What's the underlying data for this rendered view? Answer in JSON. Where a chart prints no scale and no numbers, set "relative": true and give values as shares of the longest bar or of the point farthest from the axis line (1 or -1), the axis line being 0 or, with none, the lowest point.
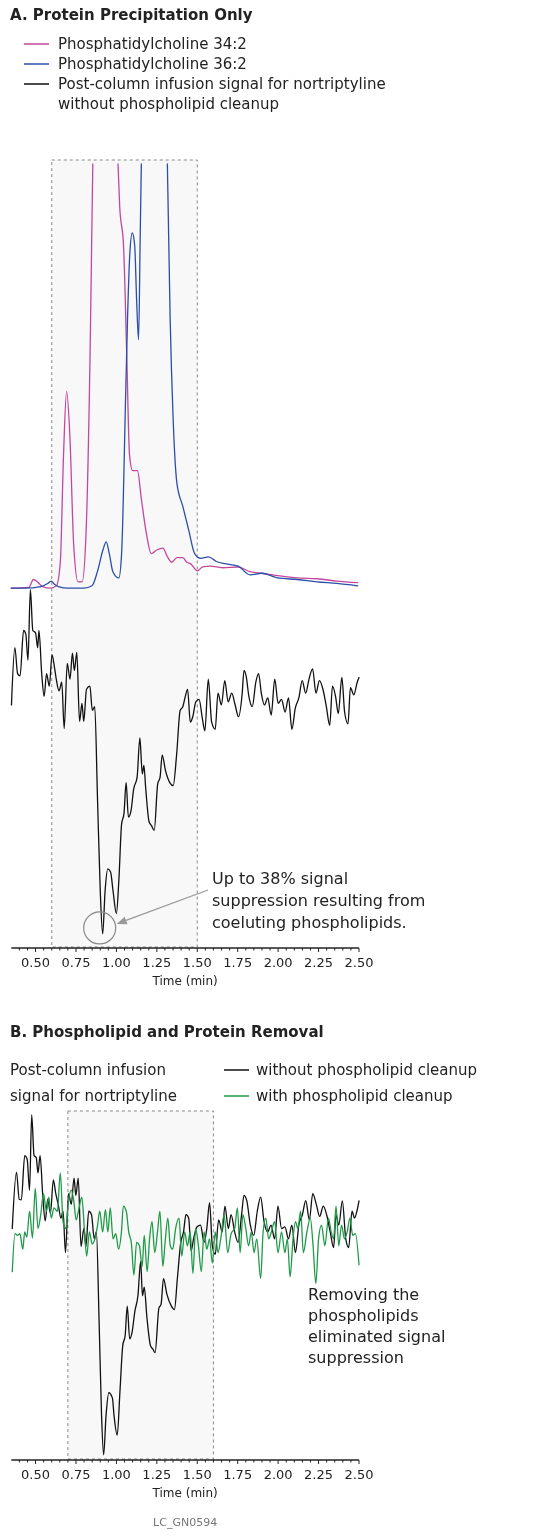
{
  "chart_data": [
    {
      "type": "line",
      "title": "A. Protein Precipitation Only",
      "xlabel": "Time (min)",
      "relative": true,
      "legend": "top",
      "xlim": [
        0.35,
        2.5
      ],
      "xticks": [
        {
          "value": 0.4,
          "label": null
        },
        {
          "value": 0.45,
          "label": null
        },
        {
          "value": 0.5,
          "label": "0.50"
        },
        {
          "value": 0.55,
          "label": null
        },
        {
          "value": 0.6,
          "label": null
        },
        {
          "value": 0.65,
          "label": null
        },
        {
          "value": 0.7,
          "label": null
        },
        {
          "value": 0.75,
          "label": "0.75"
        },
        {
          "value": 0.8,
          "label": null
        },
        {
          "value": 0.85,
          "label": null
        },
        {
          "value": 0.9,
          "label": null
        },
        {
          "value": 0.95,
          "label": null
        },
        {
          "value": 1.0,
          "label": "1.00"
        },
        {
          "value": 1.05,
          "label": null
        },
        {
          "value": 1.1,
          "label": null
        },
        {
          "value": 1.15,
          "label": null
        },
        {
          "value": 1.2,
          "label": null
        },
        {
          "value": 1.25,
          "label": "1.25"
        },
        {
          "value": 1.3,
          "label": null
        },
        {
          "value": 1.35,
          "label": null
        },
        {
          "value": 1.4,
          "label": null
        },
        {
          "value": 1.45,
          "label": null
        },
        {
          "value": 1.5,
          "label": "1.50"
        },
        {
          "value": 1.55,
          "label": null
        },
        {
          "value": 1.6,
          "label": null
        },
        {
          "value": 1.65,
          "label": null
        },
        {
          "value": 1.7,
          "label": null
        },
        {
          "value": 1.75,
          "label": "1.75"
        },
        {
          "value": 1.8,
          "label": null
        },
        {
          "value": 1.85,
          "label": null
        },
        {
          "value": 1.9,
          "label": null
        },
        {
          "value": 1.95,
          "label": null
        },
        {
          "value": 2.0,
          "label": "2.00"
        },
        {
          "value": 2.05,
          "label": null
        },
        {
          "value": 2.1,
          "label": null
        },
        {
          "value": 2.15,
          "label": null
        },
        {
          "value": 2.2,
          "label": null
        },
        {
          "value": 2.25,
          "label": "2.25"
        },
        {
          "value": 2.3,
          "label": null
        },
        {
          "value": 2.35,
          "label": null
        },
        {
          "value": 2.4,
          "label": null
        },
        {
          "value": 2.45,
          "label": null
        },
        {
          "value": 2.5,
          "label": "2.50"
        }
      ],
      "bands": [
        {
          "axis": "x",
          "from": 0.6,
          "to": 1.5,
          "color": "#888888"
        }
      ],
      "annotations": [
        "Up to 38% signal suppression resulting from coeluting phospholipids."
      ],
      "series": [
        {
          "name": "Phosphatidylcholine 34:2",
          "color": "#c2479f",
          "x": [
            0.35,
            0.458,
            0.487,
            0.512,
            0.543,
            0.592,
            0.629,
            0.653,
            0.673,
            0.692,
            0.712,
            0.736,
            0.763,
            0.788,
            0.812,
            0.837,
            0.854,
            0.932,
            1.01,
            1.02,
            1.044,
            1.064,
            1.081,
            1.1,
            1.13,
            1.154,
            1.186,
            1.215,
            1.252,
            1.288,
            1.313,
            1.342,
            1.374,
            1.411,
            1.435,
            1.459,
            1.501,
            1.533,
            1.582,
            1.655,
            1.753,
            1.826,
            1.899,
            1.997,
            2.119,
            2.241,
            2.363,
            2.492
          ],
          "values": [
            0.459,
            0.46,
            0.47,
            0.467,
            0.461,
            0.459,
            0.462,
            0.492,
            0.629,
            0.71,
            0.654,
            0.513,
            0.467,
            0.467,
            0.528,
            0.755,
            1.0,
            null,
            1.0,
            0.947,
            0.896,
            0.755,
            0.629,
            0.609,
            0.609,
            0.573,
            0.528,
            0.503,
            0.508,
            0.51,
            0.5,
            0.492,
            0.498,
            0.498,
            0.492,
            0.49,
            0.481,
            0.486,
            0.487,
            0.485,
            0.486,
            0.48,
            0.478,
            0.475,
            0.472,
            0.471,
            0.468,
            0.466
          ]
        },
        {
          "name": "Phosphatidylcholine 36:2",
          "color": "#2a4fa8",
          "x": [
            0.35,
            0.434,
            0.531,
            0.575,
            0.597,
            0.617,
            0.641,
            0.702,
            0.8,
            0.849,
            0.885,
            0.917,
            0.937,
            0.956,
            0.978,
            1.015,
            1.032,
            1.057,
            1.069,
            1.083,
            1.098,
            1.113,
            1.125,
            1.137,
            1.147,
            1.154,
            1.235,
            1.315,
            1.332,
            1.35,
            1.374,
            1.411,
            1.447,
            1.484,
            1.52,
            1.569,
            1.618,
            1.679,
            1.753,
            1.826,
            1.899,
            1.997,
            2.119,
            2.241,
            2.363,
            2.492
          ],
          "values": [
            0.459,
            0.459,
            0.461,
            0.465,
            0.468,
            0.464,
            0.461,
            0.459,
            0.459,
            0.462,
            0.482,
            0.508,
            0.518,
            0.503,
            0.48,
            0.472,
            0.503,
            0.704,
            0.805,
            0.886,
            0.912,
            0.896,
            0.826,
            0.776,
            0.906,
            1.0,
            null,
            1.0,
            0.805,
            0.679,
            0.593,
            0.563,
            0.533,
            0.503,
            0.497,
            0.499,
            0.493,
            0.49,
            0.487,
            0.476,
            0.478,
            0.472,
            0.47,
            0.467,
            0.465,
            0.462
          ]
        },
        {
          "name": "Post-column infusion signal for nortriptyline without phospholipid cleanup",
          "color": "#111111",
          "x": [
            0.351,
            0.372,
            0.389,
            0.404,
            0.426,
            0.44,
            0.453,
            0.468,
            0.483,
            0.5,
            0.513,
            0.521,
            0.538,
            0.553,
            0.568,
            0.585,
            0.602,
            0.617,
            0.628,
            0.645,
            0.662,
            0.677,
            0.696,
            0.713,
            0.728,
            0.74,
            0.755,
            0.772,
            0.787,
            0.798,
            0.815,
            0.836,
            0.851,
            0.866,
            0.883,
            0.9,
            0.915,
            0.93,
            0.947,
            0.964,
            0.979,
            1.0,
            1.015,
            1.032,
            1.047,
            1.06,
            1.074,
            1.091,
            1.106,
            1.128,
            1.145,
            1.16,
            1.17,
            1.181,
            1.202,
            1.217,
            1.234,
            1.255,
            1.27,
            1.283,
            1.304,
            1.33,
            1.351,
            1.372,
            1.394,
            1.411,
            1.426,
            1.44,
            1.457,
            1.472,
            1.491,
            1.511,
            1.532,
            1.547,
            1.568,
            1.589,
            1.611,
            1.628,
            1.649,
            1.67,
            1.691,
            1.713,
            1.734,
            1.755,
            1.777,
            1.789,
            1.802,
            1.819,
            1.84,
            1.862,
            1.879,
            1.896,
            1.915,
            1.936,
            1.957,
            1.979,
            2.0,
            2.021,
            2.043,
            2.064,
            2.085,
            2.106,
            2.128,
            2.149,
            2.17,
            2.191,
            2.213,
            2.234,
            2.255,
            2.277,
            2.298,
            2.319,
            2.336,
            2.355,
            2.372,
            2.394,
            2.411,
            2.432,
            2.447,
            2.468,
            2.489,
            2.5
          ],
          "values": [
            0.31,
            0.383,
            0.35,
            0.347,
            0.405,
            0.4,
            0.367,
            0.457,
            0.405,
            0.402,
            0.383,
            0.405,
            0.35,
            0.321,
            0.35,
            0.334,
            0.374,
            0.358,
            0.343,
            0.328,
            0.339,
            0.28,
            0.363,
            0.343,
            0.376,
            0.354,
            0.377,
            0.289,
            0.312,
            0.289,
            0.33,
            0.334,
            0.303,
            0.308,
            0.191,
            0.073,
            0.018,
            0.073,
            0.101,
            0.097,
            0.073,
            0.044,
            0.086,
            0.158,
            0.172,
            0.211,
            0.167,
            0.176,
            0.202,
            0.218,
            0.268,
            0.222,
            0.233,
            0.204,
            0.161,
            0.156,
            0.15,
            0.209,
            0.218,
            0.246,
            0.226,
            0.211,
            0.207,
            0.246,
            0.303,
            0.308,
            0.321,
            0.33,
            0.288,
            0.295,
            0.314,
            0.317,
            0.292,
            0.277,
            0.343,
            0.288,
            0.279,
            0.325,
            0.31,
            0.341,
            0.314,
            0.325,
            0.31,
            0.295,
            0.323,
            0.354,
            0.347,
            0.321,
            0.308,
            0.339,
            0.35,
            0.325,
            0.31,
            0.319,
            0.297,
            0.343,
            0.312,
            0.317,
            0.301,
            0.319,
            0.279,
            0.306,
            0.319,
            0.341,
            0.325,
            0.343,
            0.356,
            0.325,
            0.341,
            0.33,
            0.308,
            0.284,
            0.334,
            0.321,
            0.299,
            0.345,
            0.301,
            0.286,
            0.332,
            0.323,
            0.339,
            0.345
          ]
        }
      ]
    },
    {
      "type": "line",
      "title": "B. Phospholipid and Protein Removal",
      "xlabel": "Time (min)",
      "relative": true,
      "legend": "top",
      "legend_title": "Post-column infusion signal for nortriptyline",
      "xlim": [
        0.35,
        2.5
      ],
      "xticks": [
        {
          "value": 0.4,
          "label": null
        },
        {
          "value": 0.45,
          "label": null
        },
        {
          "value": 0.5,
          "label": "0.50"
        },
        {
          "value": 0.55,
          "label": null
        },
        {
          "value": 0.6,
          "label": null
        },
        {
          "value": 0.65,
          "label": null
        },
        {
          "value": 0.7,
          "label": null
        },
        {
          "value": 0.75,
          "label": "0.75"
        },
        {
          "value": 0.8,
          "label": null
        },
        {
          "value": 0.85,
          "label": null
        },
        {
          "value": 0.9,
          "label": null
        },
        {
          "value": 0.95,
          "label": null
        },
        {
          "value": 1.0,
          "label": "1.00"
        },
        {
          "value": 1.05,
          "label": null
        },
        {
          "value": 1.1,
          "label": null
        },
        {
          "value": 1.15,
          "label": null
        },
        {
          "value": 1.2,
          "label": null
        },
        {
          "value": 1.25,
          "label": "1.25"
        },
        {
          "value": 1.3,
          "label": null
        },
        {
          "value": 1.35,
          "label": null
        },
        {
          "value": 1.4,
          "label": null
        },
        {
          "value": 1.45,
          "label": null
        },
        {
          "value": 1.5,
          "label": "1.50"
        },
        {
          "value": 1.55,
          "label": null
        },
        {
          "value": 1.6,
          "label": null
        },
        {
          "value": 1.65,
          "label": null
        },
        {
          "value": 1.7,
          "label": null
        },
        {
          "value": 1.75,
          "label": "1.75"
        },
        {
          "value": 1.8,
          "label": null
        },
        {
          "value": 1.85,
          "label": null
        },
        {
          "value": 1.9,
          "label": null
        },
        {
          "value": 1.95,
          "label": null
        },
        {
          "value": 2.0,
          "label": "2.00"
        },
        {
          "value": 2.05,
          "label": null
        },
        {
          "value": 2.1,
          "label": null
        },
        {
          "value": 2.15,
          "label": null
        },
        {
          "value": 2.2,
          "label": null
        },
        {
          "value": 2.25,
          "label": "2.25"
        },
        {
          "value": 2.3,
          "label": null
        },
        {
          "value": 2.35,
          "label": null
        },
        {
          "value": 2.4,
          "label": null
        },
        {
          "value": 2.45,
          "label": null
        },
        {
          "value": 2.5,
          "label": "2.50"
        }
      ],
      "bands": [
        {
          "axis": "x",
          "from": 0.7,
          "to": 1.6,
          "color": "#888888"
        }
      ],
      "annotations": [
        "Removing the phospholipids eliminated signal suppression",
        "LC_GN0594"
      ],
      "series": [
        {
          "name": "without phospholipid cleanup",
          "color": "#111111",
          "x": [
            0.356,
            0.382,
            0.399,
            0.412,
            0.433,
            0.448,
            0.463,
            0.476,
            0.491,
            0.504,
            0.515,
            0.528,
            0.545,
            0.56,
            0.575,
            0.592,
            0.61,
            0.625,
            0.64,
            0.657,
            0.67,
            0.685,
            0.704,
            0.721,
            0.738,
            0.749,
            0.764,
            0.781,
            0.799,
            0.811,
            0.829,
            0.846,
            0.863,
            0.876,
            0.893,
            0.908,
            0.921,
            0.936,
            0.953,
            0.975,
            0.985,
            1.005,
            1.022,
            1.039,
            1.054,
            1.067,
            1.082,
            1.097,
            1.114,
            1.133,
            1.15,
            1.161,
            1.172,
            1.189,
            1.211,
            1.226,
            1.239,
            1.263,
            1.276,
            1.291,
            1.312,
            1.34,
            1.359,
            1.376,
            1.398,
            1.415,
            1.43,
            1.447,
            1.462,
            1.477,
            1.499,
            1.52,
            1.542,
            1.559,
            1.576,
            1.593,
            1.611,
            1.632,
            1.654,
            1.671,
            1.692,
            1.709,
            1.731,
            1.752,
            1.774,
            1.789,
            1.806,
            1.828,
            1.849,
            1.871,
            1.892,
            1.913,
            1.935,
            1.956,
            1.978,
            1.999,
            2.021,
            2.042,
            2.064,
            2.085,
            2.107,
            2.128,
            2.15,
            2.171,
            2.193,
            2.214,
            2.236,
            2.257,
            2.279,
            2.3,
            2.322,
            2.343,
            2.358,
            2.375,
            2.397,
            2.418,
            2.436,
            2.457,
            2.472,
            2.487,
            2.5
          ],
          "values": [
            0.671,
            0.834,
            0.756,
            0.754,
            0.882,
            0.872,
            0.782,
            1.0,
            0.882,
            0.877,
            0.832,
            0.882,
            0.762,
            0.693,
            0.756,
            0.716,
            0.812,
            0.772,
            0.741,
            0.701,
            0.721,
            0.601,
            0.772,
            0.741,
            0.817,
            0.767,
            0.817,
            0.619,
            0.671,
            0.619,
            0.721,
            0.711,
            0.641,
            0.661,
            0.401,
            0.13,
            0.015,
            0.13,
            0.195,
            0.18,
            0.13,
            0.072,
            0.2,
            0.331,
            0.361,
            0.446,
            0.351,
            0.371,
            0.431,
            0.476,
            0.576,
            0.476,
            0.501,
            0.411,
            0.331,
            0.321,
            0.311,
            0.441,
            0.451,
            0.526,
            0.481,
            0.446,
            0.436,
            0.521,
            0.631,
            0.661,
            0.711,
            0.701,
            0.606,
            0.641,
            0.676,
            0.681,
            0.631,
            0.671,
            0.746,
            0.621,
            0.596,
            0.696,
            0.661,
            0.736,
            0.671,
            0.711,
            0.661,
            0.631,
            0.711,
            0.767,
            0.752,
            0.681,
            0.651,
            0.721,
            0.762,
            0.691,
            0.661,
            0.681,
            0.641,
            0.736,
            0.671,
            0.676,
            0.641,
            0.681,
            0.601,
            0.681,
            0.711,
            0.752,
            0.696,
            0.772,
            0.741,
            0.706,
            0.736,
            0.711,
            0.661,
            0.616,
            0.711,
            0.681,
            0.751,
            0.641,
            0.616,
            0.721,
            0.701,
            0.721,
            0.751
          ]
        },
        {
          "name": "with phospholipid cleanup",
          "color": "#1f9a48",
          "x": [
            0.356,
            0.373,
            0.388,
            0.403,
            0.421,
            0.433,
            0.446,
            0.463,
            0.481,
            0.498,
            0.515,
            0.532,
            0.549,
            0.567,
            0.582,
            0.597,
            0.614,
            0.635,
            0.653,
            0.67,
            0.687,
            0.704,
            0.721,
            0.736,
            0.751,
            0.769,
            0.786,
            0.803,
            0.816,
            0.833,
            0.85,
            0.867,
            0.882,
            0.897,
            0.915,
            0.932,
            0.947,
            0.962,
            0.979,
            0.996,
            1.013,
            1.031,
            1.043,
            1.061,
            1.076,
            1.093,
            1.108,
            1.125,
            1.142,
            1.159,
            1.172,
            1.19,
            1.205,
            1.22,
            1.237,
            1.254,
            1.269,
            1.287,
            1.301,
            1.318,
            1.333,
            1.348,
            1.366,
            1.387,
            1.404,
            1.422,
            1.439,
            1.456,
            1.473,
            1.49,
            1.507,
            1.525,
            1.542,
            1.559,
            1.576,
            1.593,
            1.611,
            1.628,
            1.645,
            1.666,
            1.688,
            1.709,
            1.731,
            1.748,
            1.765,
            1.782,
            1.8,
            1.817,
            1.834,
            1.851,
            1.868,
            1.892,
            1.907,
            1.924,
            1.941,
            1.958,
            1.978,
            1.999,
            2.021,
            2.042,
            2.057,
            2.074,
            2.092,
            2.107,
            2.122,
            2.139,
            2.156,
            2.178,
            2.199,
            2.216,
            2.233,
            2.25,
            2.268,
            2.289,
            2.311,
            2.328,
            2.343,
            2.358,
            2.375,
            2.392,
            2.41,
            2.427,
            2.444,
            2.461,
            2.478,
            2.5
          ],
          "values": [
            0.546,
            0.656,
            0.651,
            0.656,
            0.611,
            0.661,
            0.646,
            0.721,
            0.643,
            0.787,
            0.671,
            0.711,
            0.772,
            0.721,
            0.762,
            0.701,
            0.731,
            0.721,
            0.832,
            0.691,
            0.671,
            0.752,
            0.782,
            0.752,
            0.696,
            0.731,
            0.762,
            0.661,
            0.591,
            0.661,
            0.626,
            0.641,
            0.676,
            0.721,
            0.661,
            0.726,
            0.661,
            0.731,
            0.641,
            0.656,
            0.611,
            0.661,
            0.736,
            0.721,
            0.661,
            0.626,
            0.536,
            0.631,
            0.621,
            0.561,
            0.651,
            0.546,
            0.641,
            0.691,
            0.601,
            0.661,
            0.721,
            0.561,
            0.631,
            0.701,
            0.621,
            0.611,
            0.671,
            0.701,
            0.591,
            0.661,
            0.621,
            0.661,
            0.541,
            0.671,
            0.621,
            0.546,
            0.661,
            0.611,
            0.641,
            0.571,
            0.661,
            0.601,
            0.641,
            0.711,
            0.601,
            0.656,
            0.671,
            0.731,
            0.601,
            0.711,
            0.671,
            0.621,
            0.661,
            0.601,
            0.641,
            0.526,
            0.661,
            0.701,
            0.641,
            0.661,
            0.691,
            0.601,
            0.661,
            0.601,
            0.641,
            0.531,
            0.641,
            0.691,
            0.671,
            0.721,
            0.601,
            0.661,
            0.701,
            0.621,
            0.511,
            0.641,
            0.681,
            0.621,
            0.701,
            0.661,
            0.641,
            0.736,
            0.621,
            0.681,
            0.641,
            0.661,
            0.701,
            0.651,
            0.656,
            0.566
          ]
        }
      ]
    }
  ]
}
